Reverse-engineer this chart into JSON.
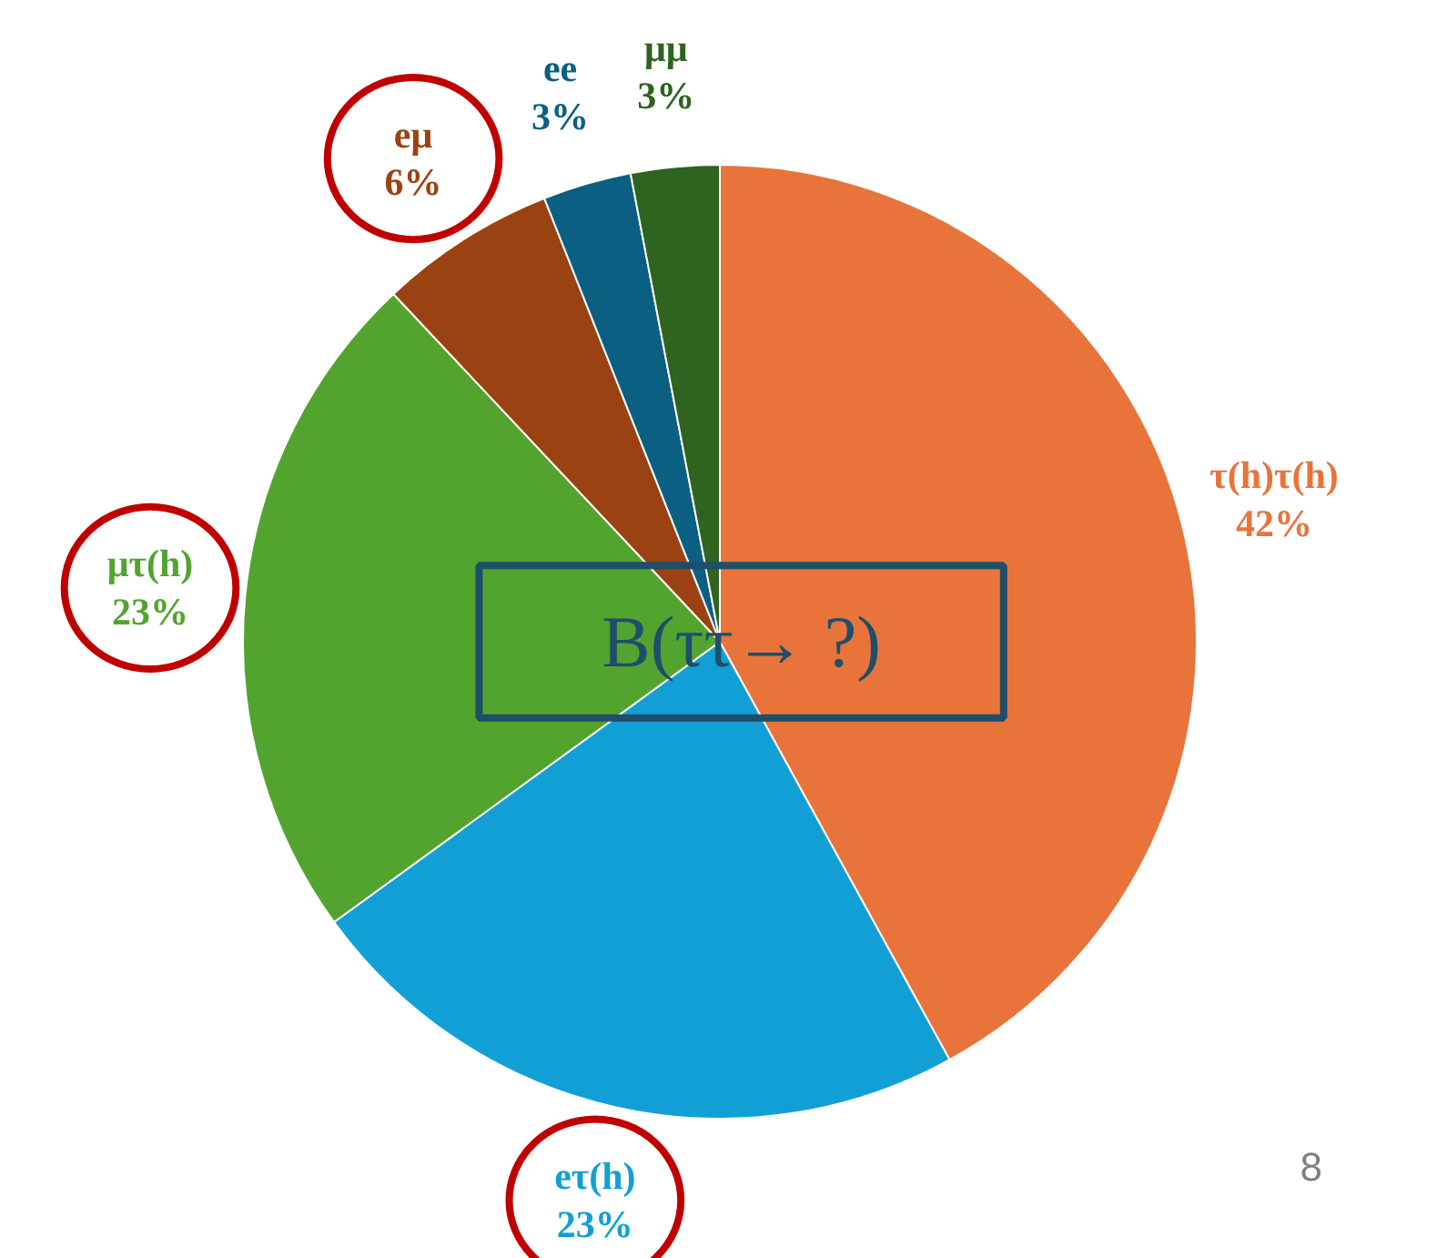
{
  "chart_data": {
    "type": "pie",
    "categories": [
      "τ(h)τ(h)",
      "eτ(h)",
      "μτ(h)",
      "eμ",
      "ee",
      "μμ"
    ],
    "values": [
      42,
      23,
      23,
      6,
      3,
      3
    ],
    "colors": [
      "#e8743b",
      "#129fd6",
      "#52a42e",
      "#9a4211",
      "#0b5f82",
      "#2e6320"
    ],
    "value_labels": [
      "42%",
      "23%",
      "23%",
      "6%",
      "3%",
      "3%"
    ],
    "annotations": [
      "B(ττ→ ?)",
      "8"
    ]
  }
}
